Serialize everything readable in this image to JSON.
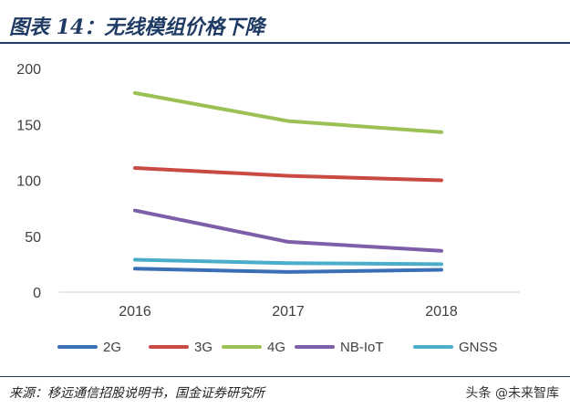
{
  "header": {
    "title": "图表 14：无线模组价格下降"
  },
  "footer": {
    "source": "来源：移远通信招股说明书，国金证券研究所",
    "watermark": "头条 @未来智库"
  },
  "chart_data": {
    "type": "line",
    "x": [
      "2016",
      "2017",
      "2018"
    ],
    "ylim": [
      0,
      200
    ],
    "yticks": [
      0,
      50,
      100,
      150,
      200
    ],
    "grid": false,
    "legend_position": "bottom",
    "series": [
      {
        "name": "2G",
        "values": [
          21,
          18,
          20
        ],
        "color": "#3a6fb6"
      },
      {
        "name": "3G",
        "values": [
          111,
          104,
          100
        ],
        "color": "#c94a43"
      },
      {
        "name": "4G",
        "values": [
          178,
          153,
          143
        ],
        "color": "#9bc154"
      },
      {
        "name": "NB-IoT",
        "values": [
          73,
          45,
          37
        ],
        "color": "#7d5ea8"
      },
      {
        "name": "GNSS",
        "values": [
          29,
          26,
          25
        ],
        "color": "#4aaecb"
      }
    ]
  }
}
